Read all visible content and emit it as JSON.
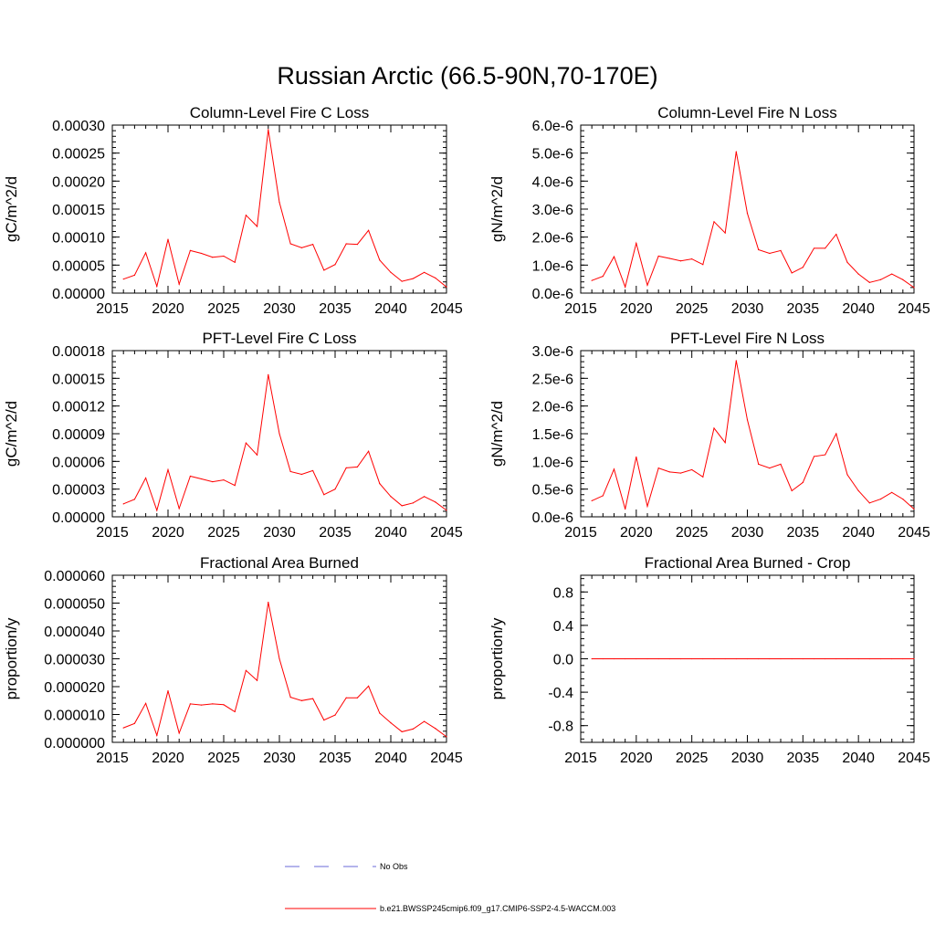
{
  "title": "Russian Arctic (66.5-90N,70-170E)",
  "colors": {
    "model": "#ff0000",
    "obs": "#6a6ad8",
    "axis": "#000000"
  },
  "legend": {
    "entries": [
      {
        "label": "No Obs",
        "style": "dashed",
        "color": "#6a6ad8"
      },
      {
        "label": "b.e21.BWSSP245cmip6.f09_g17.CMIP6-SSP2-4.5-WACCM.003",
        "style": "solid",
        "color": "#ff0000"
      }
    ]
  },
  "chart_data": [
    {
      "type": "line",
      "title": "Column-Level Fire C Loss",
      "ylabel": "gC/m^2/d",
      "xlabel": "",
      "xlim": [
        2015,
        2045
      ],
      "ylim": [
        0,
        0.0003
      ],
      "x_ticks": [
        2015,
        2020,
        2025,
        2030,
        2035,
        2040,
        2045
      ],
      "x_tick_labels": [
        "2015",
        "2020",
        "2025",
        "2030",
        "2035",
        "2040",
        "2045"
      ],
      "y_ticks": [
        0,
        5e-05,
        0.0001,
        0.00015,
        0.0002,
        0.00025,
        0.0003
      ],
      "y_tick_labels": [
        "0.00000",
        "0.00005",
        "0.00010",
        "0.00015",
        "0.00020",
        "0.00025",
        "0.00030"
      ],
      "series": [
        {
          "name": "b.e21.BWSSP245cmip6.f09_g17.CMIP6-SSP2-4.5-WACCM.003",
          "x": [
            2016,
            2017,
            2018,
            2019,
            2020,
            2021,
            2022,
            2023,
            2024,
            2025,
            2026,
            2027,
            2028,
            2029,
            2030,
            2031,
            2032,
            2033,
            2034,
            2035,
            2036,
            2037,
            2038,
            2039,
            2040,
            2041,
            2042,
            2043,
            2044,
            2045
          ],
          "values": [
            2.5e-05,
            3.2e-05,
            7.2e-05,
            1.2e-05,
            9.6e-05,
            1.6e-05,
            7.6e-05,
            7.1e-05,
            6.4e-05,
            6.6e-05,
            5.5e-05,
            0.000139,
            0.000119,
            0.000292,
            0.000162,
            8.8e-05,
            8.1e-05,
            8.7e-05,
            4.1e-05,
            5.1e-05,
            8.8e-05,
            8.7e-05,
            0.000112,
            5.9e-05,
            3.7e-05,
            2.1e-05,
            2.6e-05,
            3.7e-05,
            2.7e-05,
            1.1e-05
          ]
        }
      ]
    },
    {
      "type": "line",
      "title": "Column-Level Fire N Loss",
      "ylabel": "gN/m^2/d",
      "xlabel": "",
      "xlim": [
        2015,
        2045
      ],
      "ylim": [
        0,
        6e-06
      ],
      "x_ticks": [
        2015,
        2020,
        2025,
        2030,
        2035,
        2040,
        2045
      ],
      "x_tick_labels": [
        "2015",
        "2020",
        "2025",
        "2030",
        "2035",
        "2040",
        "2045"
      ],
      "y_ticks": [
        0,
        1e-06,
        2e-06,
        3e-06,
        4e-06,
        5e-06,
        6e-06
      ],
      "y_tick_labels": [
        "0.0e-6",
        "1.0e-6",
        "2.0e-6",
        "3.0e-6",
        "4.0e-6",
        "5.0e-6",
        "6.0e-6"
      ],
      "series": [
        {
          "name": "b.e21.BWSSP245cmip6.f09_g17.CMIP6-SSP2-4.5-WACCM.003",
          "x": [
            2016,
            2017,
            2018,
            2019,
            2020,
            2021,
            2022,
            2023,
            2024,
            2025,
            2026,
            2027,
            2028,
            2029,
            2030,
            2031,
            2032,
            2033,
            2034,
            2035,
            2036,
            2037,
            2038,
            2039,
            2040,
            2041,
            2042,
            2043,
            2044,
            2045
          ],
          "values": [
            4.5e-07,
            6e-07,
            1.3e-06,
            2.2e-07,
            1.78e-06,
            2.8e-07,
            1.32e-06,
            1.24e-06,
            1.15e-06,
            1.22e-06,
            1.02e-06,
            2.55e-06,
            2.15e-06,
            5.05e-06,
            2.85e-06,
            1.55e-06,
            1.42e-06,
            1.52e-06,
            7.2e-07,
            9.2e-07,
            1.6e-06,
            1.6e-06,
            2.1e-06,
            1.1e-06,
            6.8e-07,
            3.8e-07,
            4.8e-07,
            6.8e-07,
            4.8e-07,
            2e-07
          ]
        }
      ]
    },
    {
      "type": "line",
      "title": "PFT-Level Fire C Loss",
      "ylabel": "gC/m^2/d",
      "xlabel": "",
      "xlim": [
        2015,
        2045
      ],
      "ylim": [
        0,
        0.00018
      ],
      "x_ticks": [
        2015,
        2020,
        2025,
        2030,
        2035,
        2040,
        2045
      ],
      "x_tick_labels": [
        "2015",
        "2020",
        "2025",
        "2030",
        "2035",
        "2040",
        "2045"
      ],
      "y_ticks": [
        0,
        3e-05,
        6e-05,
        9e-05,
        0.00012,
        0.00015,
        0.00018
      ],
      "y_tick_labels": [
        "0.00000",
        "0.00003",
        "0.00006",
        "0.00009",
        "0.00012",
        "0.00015",
        "0.00018"
      ],
      "series": [
        {
          "name": "b.e21.BWSSP245cmip6.f09_g17.CMIP6-SSP2-4.5-WACCM.003",
          "x": [
            2016,
            2017,
            2018,
            2019,
            2020,
            2021,
            2022,
            2023,
            2024,
            2025,
            2026,
            2027,
            2028,
            2029,
            2030,
            2031,
            2032,
            2033,
            2034,
            2035,
            2036,
            2037,
            2038,
            2039,
            2040,
            2041,
            2042,
            2043,
            2044,
            2045
          ],
          "values": [
            1.4e-05,
            1.9e-05,
            4.2e-05,
            7e-06,
            5.1e-05,
            9e-06,
            4.4e-05,
            4.1e-05,
            3.8e-05,
            4e-05,
            3.4e-05,
            8e-05,
            6.7e-05,
            0.000154,
            9e-05,
            4.9e-05,
            4.6e-05,
            5e-05,
            2.4e-05,
            3e-05,
            5.3e-05,
            5.4e-05,
            7.1e-05,
            3.6e-05,
            2.2e-05,
            1.2e-05,
            1.5e-05,
            2.2e-05,
            1.6e-05,
            7e-06
          ]
        }
      ]
    },
    {
      "type": "line",
      "title": "PFT-Level Fire N Loss",
      "ylabel": "gN/m^2/d",
      "xlabel": "",
      "xlim": [
        2015,
        2045
      ],
      "ylim": [
        0,
        3e-06
      ],
      "x_ticks": [
        2015,
        2020,
        2025,
        2030,
        2035,
        2040,
        2045
      ],
      "x_tick_labels": [
        "2015",
        "2020",
        "2025",
        "2030",
        "2035",
        "2040",
        "2045"
      ],
      "y_ticks": [
        0,
        5e-07,
        1e-06,
        1.5e-06,
        2e-06,
        2.5e-06,
        3e-06
      ],
      "y_tick_labels": [
        "0.0e-6",
        "0.5e-6",
        "1.0e-6",
        "1.5e-6",
        "2.0e-6",
        "2.5e-6",
        "3.0e-6"
      ],
      "series": [
        {
          "name": "b.e21.BWSSP245cmip6.f09_g17.CMIP6-SSP2-4.5-WACCM.003",
          "x": [
            2016,
            2017,
            2018,
            2019,
            2020,
            2021,
            2022,
            2023,
            2024,
            2025,
            2026,
            2027,
            2028,
            2029,
            2030,
            2031,
            2032,
            2033,
            2034,
            2035,
            2036,
            2037,
            2038,
            2039,
            2040,
            2041,
            2042,
            2043,
            2044,
            2045
          ],
          "values": [
            2.9e-07,
            3.8e-07,
            8.6e-07,
            1.4e-07,
            1.08e-06,
            1.9e-07,
            8.8e-07,
            8.1e-07,
            7.9e-07,
            8.5e-07,
            7.2e-07,
            1.6e-06,
            1.34e-06,
            2.82e-06,
            1.75e-06,
            9.5e-07,
            8.8e-07,
            9.5e-07,
            4.7e-07,
            6.2e-07,
            1.09e-06,
            1.12e-06,
            1.5e-06,
            7.6e-07,
            4.7e-07,
            2.5e-07,
            3.2e-07,
            4.4e-07,
            3.2e-07,
            1.4e-07
          ]
        }
      ]
    },
    {
      "type": "line",
      "title": "Fractional Area Burned",
      "ylabel": "proportion/y",
      "xlabel": "",
      "xlim": [
        2015,
        2045
      ],
      "ylim": [
        0,
        6e-05
      ],
      "x_ticks": [
        2015,
        2020,
        2025,
        2030,
        2035,
        2040,
        2045
      ],
      "x_tick_labels": [
        "2015",
        "2020",
        "2025",
        "2030",
        "2035",
        "2040",
        "2045"
      ],
      "y_ticks": [
        0,
        1e-05,
        2e-05,
        3e-05,
        4e-05,
        5e-05,
        6e-05
      ],
      "y_tick_labels": [
        "0.000000",
        "0.000010",
        "0.000020",
        "0.000030",
        "0.000040",
        "0.000050",
        "0.000060"
      ],
      "series": [
        {
          "name": "b.e21.BWSSP245cmip6.f09_g17.CMIP6-SSP2-4.5-WACCM.003",
          "x": [
            2016,
            2017,
            2018,
            2019,
            2020,
            2021,
            2022,
            2023,
            2024,
            2025,
            2026,
            2027,
            2028,
            2029,
            2030,
            2031,
            2032,
            2033,
            2034,
            2035,
            2036,
            2037,
            2038,
            2039,
            2040,
            2041,
            2042,
            2043,
            2044,
            2045
          ],
          "values": [
            5.2e-06,
            6.8e-06,
            1.4e-05,
            2.5e-06,
            1.85e-05,
            3.3e-06,
            1.38e-05,
            1.34e-05,
            1.38e-05,
            1.35e-05,
            1.1e-05,
            2.58e-05,
            2.22e-05,
            5.03e-05,
            3e-05,
            1.62e-05,
            1.5e-05,
            1.57e-05,
            8e-06,
            9.8e-06,
            1.6e-05,
            1.6e-05,
            2.02e-05,
            1.05e-05,
            7e-06,
            3.8e-06,
            4.8e-06,
            7.5e-06,
            5e-06,
            2e-06
          ]
        }
      ]
    },
    {
      "type": "line",
      "title": "Fractional Area Burned - Crop",
      "ylabel": "proportion/y",
      "xlabel": "",
      "xlim": [
        2015,
        2045
      ],
      "ylim": [
        -1.0,
        1.0
      ],
      "x_ticks": [
        2015,
        2020,
        2025,
        2030,
        2035,
        2040,
        2045
      ],
      "x_tick_labels": [
        "2015",
        "2020",
        "2025",
        "2030",
        "2035",
        "2040",
        "2045"
      ],
      "y_ticks": [
        -0.8,
        -0.4,
        0.0,
        0.4,
        0.8
      ],
      "y_tick_labels": [
        "-0.8",
        "-0.4",
        "0.0",
        "0.4",
        "0.8"
      ],
      "series": [
        {
          "name": "b.e21.BWSSP245cmip6.f09_g17.CMIP6-SSP2-4.5-WACCM.003",
          "x": [
            2016,
            2017,
            2018,
            2019,
            2020,
            2021,
            2022,
            2023,
            2024,
            2025,
            2026,
            2027,
            2028,
            2029,
            2030,
            2031,
            2032,
            2033,
            2034,
            2035,
            2036,
            2037,
            2038,
            2039,
            2040,
            2041,
            2042,
            2043,
            2044,
            2045
          ],
          "values": [
            0,
            0,
            0,
            0,
            0,
            0,
            0,
            0,
            0,
            0,
            0,
            0,
            0,
            0,
            0,
            0,
            0,
            0,
            0,
            0,
            0,
            0,
            0,
            0,
            0,
            0,
            0,
            0,
            0,
            0
          ]
        }
      ]
    }
  ]
}
